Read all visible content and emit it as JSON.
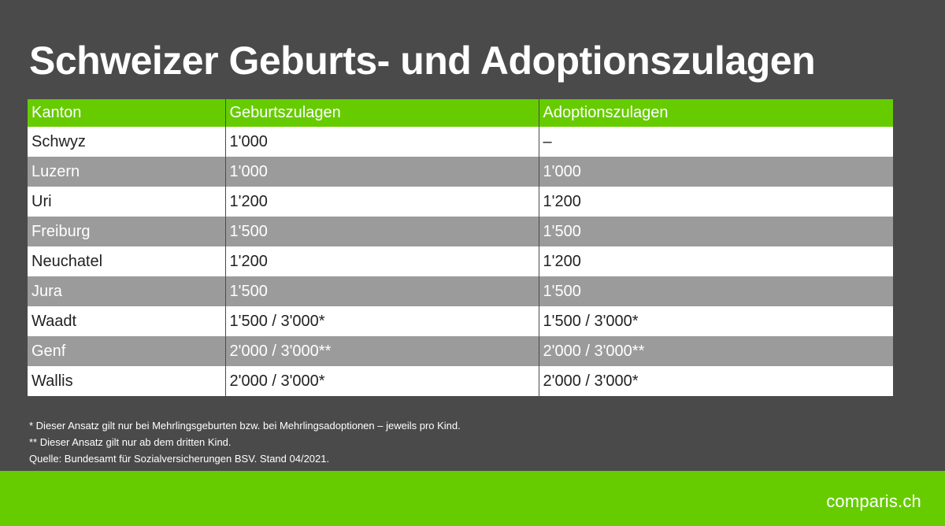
{
  "title": "Schweizer Geburts- und Adoptionszulagen",
  "table": {
    "headers": [
      "Kanton",
      "Geburtszulagen",
      "Adoptionszulagen"
    ],
    "rows": [
      [
        "Schwyz",
        "1'000",
        "–"
      ],
      [
        "Luzern",
        "1'000",
        "1'000"
      ],
      [
        "Uri",
        "1'200",
        "1'200"
      ],
      [
        "Freiburg",
        "1'500",
        "1'500"
      ],
      [
        "Neuchatel",
        "1'200",
        "1'200"
      ],
      [
        "Jura",
        "1'500",
        "1'500"
      ],
      [
        "Waadt",
        "1'500 / 3'000*",
        "1'500 / 3'000*"
      ],
      [
        "Genf",
        "2'000 / 3'000**",
        "2'000 / 3'000**"
      ],
      [
        "Wallis",
        "2'000 / 3'000*",
        "2'000 / 3'000*"
      ]
    ]
  },
  "notes": [
    "* Dieser Ansatz gilt nur bei Mehrlingsgeburten bzw. bei Mehrlingsadoptionen – jeweils pro Kind.",
    "** Dieser Ansatz gilt nur ab dem dritten Kind.",
    "Quelle: Bundesamt für Sozialversicherungen BSV. Stand 04/2021."
  ],
  "footer": {
    "logo_text": "comparis.ch"
  },
  "colors": {
    "background": "#4a4a4a",
    "accent_green": "#66cc00",
    "row_dark": "#9b9b9b",
    "row_light": "#ffffff"
  }
}
